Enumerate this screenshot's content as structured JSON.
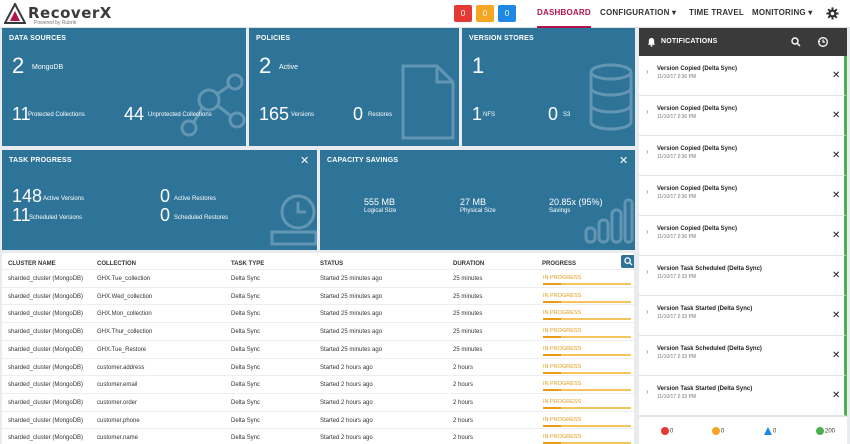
{
  "brand": {
    "name": "RecoverX",
    "tagline": "Powered by Rubrik"
  },
  "header": {
    "badges": [
      {
        "value": "0",
        "color": "#e53935"
      },
      {
        "value": "0",
        "color": "#f5a623"
      },
      {
        "value": "0",
        "color": "#1e88e5"
      }
    ],
    "nav": {
      "dashboard": "DASHBOARD",
      "configuration": "CONFIGURATION",
      "time_travel": "TIME TRAVEL",
      "monitoring": "MONITORING"
    }
  },
  "cards": {
    "data_sources": {
      "title": "DATA SOURCES",
      "count": "2",
      "count_label": "MongoDB",
      "protected": "11",
      "protected_label": "Protected Collections",
      "unprotected": "44",
      "unprotected_label": "Unprotected Collections"
    },
    "policies": {
      "title": "POLICIES",
      "count": "2",
      "count_label": "Active",
      "versions": "165",
      "versions_label": "Versions",
      "restores": "0",
      "restores_label": "Restores"
    },
    "version_stores": {
      "title": "VERSION STORES",
      "count": "1",
      "nfs": "1",
      "nfs_label": "NFS",
      "s3": "0",
      "s3_label": "S3"
    },
    "task_progress": {
      "title": "TASK PROGRESS",
      "active_versions": "148",
      "active_versions_label": "Active Versions",
      "scheduled_versions": "11",
      "scheduled_versions_label": "Scheduled Versions",
      "active_restores": "0",
      "active_restores_label": "Active Restores",
      "scheduled_restores": "0",
      "scheduled_restores_label": "Scheduled Restores"
    },
    "capacity": {
      "title": "CAPACITY SAVINGS",
      "logical": "555 MB",
      "logical_label": "Logical Size",
      "physical": "27 MB",
      "physical_label": "Physical Size",
      "savings": "20.85x (95%)",
      "savings_label": "Savings"
    }
  },
  "table": {
    "headers": {
      "cluster": "CLUSTER NAME",
      "collection": "COLLECTION",
      "task_type": "TASK TYPE",
      "status": "STATUS",
      "duration": "DURATION",
      "progress": "PROGRESS"
    },
    "rows": [
      {
        "cluster": "sharded_cluster (MongoDB)",
        "collection": "GHX.Tue_collection",
        "task_type": "Delta Sync",
        "status": "Started 25 minutes ago",
        "duration": "25 minutes",
        "progress": "IN PROGRESS",
        "pct": 0.2
      },
      {
        "cluster": "sharded_cluster (MongoDB)",
        "collection": "GHX.Wed_collection",
        "task_type": "Delta Sync",
        "status": "Started 25 minutes ago",
        "duration": "25 minutes",
        "progress": "IN PROGRESS",
        "pct": 0.2
      },
      {
        "cluster": "sharded_cluster (MongoDB)",
        "collection": "GHX.Mon_collection",
        "task_type": "Delta Sync",
        "status": "Started 25 minutes ago",
        "duration": "25 minutes",
        "progress": "IN PROGRESS",
        "pct": 0.2
      },
      {
        "cluster": "sharded_cluster (MongoDB)",
        "collection": "GHX.Thur_collection",
        "task_type": "Delta Sync",
        "status": "Started 25 minutes ago",
        "duration": "25 minutes",
        "progress": "IN PROGRESS",
        "pct": 0.2
      },
      {
        "cluster": "sharded_cluster (MongoDB)",
        "collection": "GHX.Tue_Restore",
        "task_type": "Delta Sync",
        "status": "Started 25 minutes ago",
        "duration": "25 minutes",
        "progress": "IN PROGRESS",
        "pct": 0.2
      },
      {
        "cluster": "sharded_cluster (MongoDB)",
        "collection": "customer.address",
        "task_type": "Delta Sync",
        "status": "Started 2 hours ago",
        "duration": "2 hours",
        "progress": "IN PROGRESS",
        "pct": 0.2
      },
      {
        "cluster": "sharded_cluster (MongoDB)",
        "collection": "customer.email",
        "task_type": "Delta Sync",
        "status": "Started 2 hours ago",
        "duration": "2 hours",
        "progress": "IN PROGRESS",
        "pct": 0.2
      },
      {
        "cluster": "sharded_cluster (MongoDB)",
        "collection": "customer.order",
        "task_type": "Delta Sync",
        "status": "Started 2 hours ago",
        "duration": "2 hours",
        "progress": "IN PROGRESS",
        "pct": 0.2
      },
      {
        "cluster": "sharded_cluster (MongoDB)",
        "collection": "customer.phone",
        "task_type": "Delta Sync",
        "status": "Started 2 hours ago",
        "duration": "2 hours",
        "progress": "IN PROGRESS",
        "pct": 0.2
      },
      {
        "cluster": "sharded_cluster (MongoDB)",
        "collection": "customer.name",
        "task_type": "Delta Sync",
        "status": "Started 2 hours ago",
        "duration": "2 hours",
        "progress": "IN PROGRESS",
        "pct": 0.2
      }
    ]
  },
  "notifications": {
    "title": "NOTIFICATIONS",
    "items": [
      {
        "title": "Version Copied (Delta Sync)",
        "time": "11/10/17 2:36 PM"
      },
      {
        "title": "Version Copied (Delta Sync)",
        "time": "11/10/17 2:36 PM"
      },
      {
        "title": "Version Copied (Delta Sync)",
        "time": "11/10/17 2:36 PM"
      },
      {
        "title": "Version Copied (Delta Sync)",
        "time": "11/10/17 2:36 PM"
      },
      {
        "title": "Version Copied (Delta Sync)",
        "time": "11/10/17 2:36 PM"
      },
      {
        "title": "Version Task Scheduled (Delta Sync)",
        "time": "11/10/17 2:33 PM"
      },
      {
        "title": "Version Task Started (Delta Sync)",
        "time": "11/10/17 2:33 PM"
      },
      {
        "title": "Version Task Scheduled (Delta Sync)",
        "time": "11/10/17 2:33 PM"
      },
      {
        "title": "Version Task Started (Delta Sync)",
        "time": "11/10/17 2:33 PM"
      }
    ],
    "footer": [
      {
        "value": "0",
        "color": "#e53935"
      },
      {
        "value": "0",
        "color": "#f5a623"
      },
      {
        "value": "0",
        "color": "#1e88e5"
      },
      {
        "value": "200",
        "color": "#4caf50"
      }
    ]
  }
}
